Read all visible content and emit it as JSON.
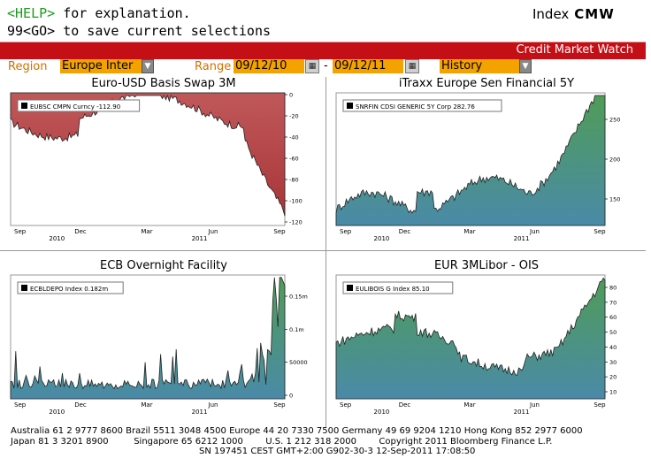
{
  "header": {
    "help_key": "<HELP>",
    "help_rest": " for explanation.",
    "save_line": "99<GO> to save current selections",
    "index_label": "Index",
    "index_code": "CMW"
  },
  "banner": {
    "title": "Credit Market Watch"
  },
  "controls": {
    "region_label": "Region",
    "region_value": "Europe Inter",
    "range_label": "Range",
    "range_start": "09/12/10",
    "range_sep": "-",
    "range_end": "09/12/11",
    "mode_value": "History"
  },
  "colors": {
    "red": "#c50f17",
    "amber": "#f4a200",
    "help_green": "#1c9a1c"
  },
  "charts": [
    {
      "title": "Euro-USD Basis Swap 3M",
      "legend": "EUBSC CMPN Curncy  -112.90",
      "fill": "#b7484a",
      "months": [
        "Sep",
        "Dec",
        "Mar",
        "Jun",
        "Sep"
      ],
      "years": [
        "2010",
        "2011"
      ],
      "yticks": [
        "0",
        "-20",
        "-40",
        "-60",
        "-80",
        "-100",
        "-120"
      ]
    },
    {
      "title": "iTraxx Europe Sen Financial 5Y",
      "legend": "SNRFIN CDSI GENERIC 5Y Corp  282.76",
      "fill": "#3f8f84",
      "months": [
        "Sep",
        "Dec",
        "Mar",
        "Jun",
        "Sep"
      ],
      "years": [
        "2010",
        "2011"
      ],
      "yticks": [
        "250",
        "200",
        "150"
      ]
    },
    {
      "title": "ECB Overnight Facility",
      "legend": "ECBLDEPO Index  0.182m",
      "fill": "#3f8f84",
      "months": [
        "Sep",
        "Dec",
        "Mar",
        "Jun",
        "Sep"
      ],
      "years": [
        "2010",
        "2011"
      ],
      "yticks": [
        "0.15m",
        "0.1m",
        "50000",
        "0"
      ]
    },
    {
      "title": "EUR 3MLibor - OIS",
      "legend": "EULIBOIS G Index  85.10",
      "fill": "#3f8f84",
      "months": [
        "Sep",
        "Dec",
        "Mar",
        "Jun",
        "Sep"
      ],
      "years": [
        "2010",
        "2011"
      ],
      "yticks": [
        "80",
        "70",
        "60",
        "50",
        "40",
        "30",
        "20",
        "10"
      ]
    }
  ],
  "footer": {
    "line1": "Australia 61 2 9777 8600 Brazil 5511 3048 4500 Europe 44 20 7330 7500 Germany 49 69 9204 1210 Hong Kong 852 2977 6000",
    "line2": "Japan 81 3 3201 8900         Singapore 65 6212 1000        U.S. 1 212 318 2000        Copyright 2011 Bloomberg Finance L.P.",
    "line3": "                                                                   SN 197451 CEST GMT+2:00 G902-30-3 12-Sep-2011 17:08:50"
  }
}
